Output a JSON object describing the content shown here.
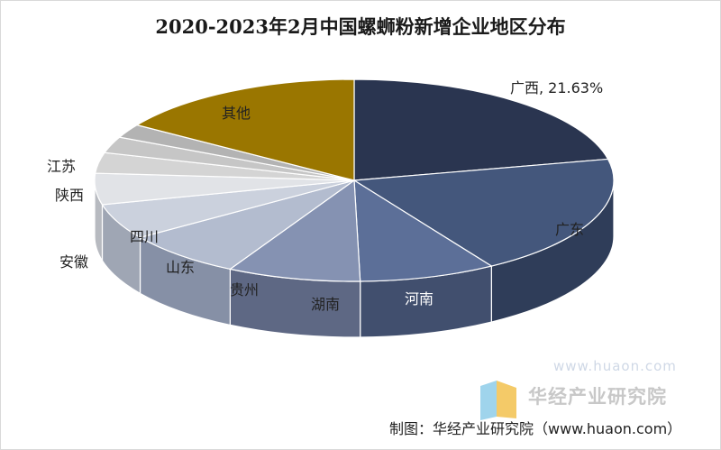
{
  "title": "2020-2023年2月中国螺蛳粉新增企业地区分布",
  "chart_data": {
    "type": "pie",
    "title": "2020-2023年2月中国螺蛳粉新增企业地区分布",
    "slices": [
      {
        "label": "广西",
        "value": 21.63,
        "data_label": "广西, 21.63%",
        "color": "#2a3550",
        "side": "#1c2538"
      },
      {
        "label": "广东",
        "value": 19.5,
        "data_label": "广东",
        "color": "#44577c",
        "side": "#2f3d59"
      },
      {
        "label": "河南",
        "value": 8.5,
        "data_label": "河南",
        "color": "#5c6f98",
        "side": "#414f6e"
      },
      {
        "label": "湖南",
        "value": 8.3,
        "data_label": "湖南",
        "color": "#8592b2",
        "side": "#5e6884"
      },
      {
        "label": "贵州",
        "value": 7.5,
        "data_label": "贵州",
        "color": "#b3bccf",
        "side": "#8690a6"
      },
      {
        "label": "山东",
        "value": 5.7,
        "data_label": "山东",
        "color": "#cbd1dd",
        "side": "#9fa6b4"
      },
      {
        "label": "四川",
        "value": 5.0,
        "data_label": "四川",
        "color": "#e1e3e7",
        "side": "#b7bac0"
      },
      {
        "label": "安徽",
        "value": 3.3,
        "data_label": "安徽",
        "color": "#d4d4d4",
        "side": "#ababab"
      },
      {
        "label": "陕西",
        "value": 2.6,
        "data_label": "陕西",
        "color": "#c6c6c6",
        "side": "#9f9f9f"
      },
      {
        "label": "江苏",
        "value": 2.2,
        "data_label": "江苏",
        "color": "#b3b3b3",
        "side": "#8f8f8f"
      },
      {
        "label": "其他",
        "value": 15.77,
        "data_label": "其他",
        "color": "#9a7600",
        "side": "#6e5400"
      }
    ]
  },
  "watermark": {
    "name": "华经产业研究院",
    "url": "www.huaon.com",
    "logo_colors": [
      "#9fd4ec",
      "#f2c14e",
      "#6fa7d8"
    ]
  },
  "source": "制图：华经产业研究院（www.huaon.com）"
}
